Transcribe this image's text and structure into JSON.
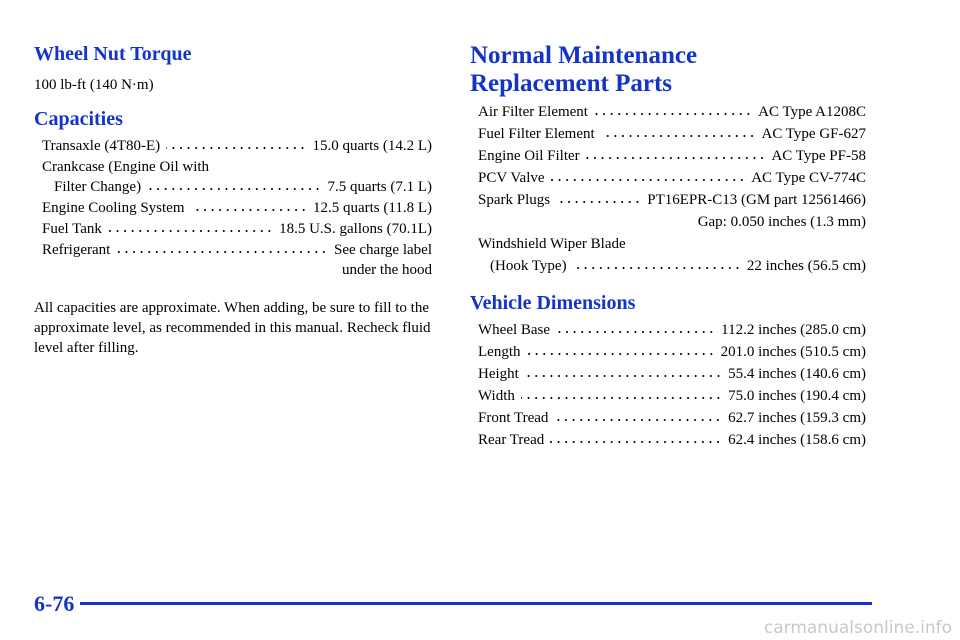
{
  "left": {
    "wheel_heading": "Wheel Nut Torque",
    "torque": "100 lb-ft (140 N·m)",
    "capacities_heading": "Capacities",
    "capacities": [
      {
        "label": "Transaxle (4T80-E)",
        "value": "15.0 quarts (14.2 L)"
      },
      {
        "pre": "Crankcase (Engine Oil with",
        "label": "Filter Change)",
        "value": "7.5 quarts (7.1 L)"
      },
      {
        "label": "Engine Cooling System",
        "value": "12.5 quarts (11.8 L)"
      },
      {
        "label": "Fuel Tank",
        "value": "18.5 U.S. gallons (70.1L)"
      },
      {
        "label": "Refrigerant",
        "value": "See charge label",
        "value2": "under the hood"
      }
    ],
    "note": "All capacities are approximate. When adding, be sure to fill to the approximate level, as recommended in this manual. Recheck fluid level after filling."
  },
  "right": {
    "parts_heading_1": "Normal Maintenance",
    "parts_heading_2": "Replacement Parts",
    "parts": [
      {
        "label": "Air Filter Element",
        "value": "AC Type A1208C"
      },
      {
        "label": "Fuel Filter Element",
        "value": "AC Type GF-627"
      },
      {
        "label": "Engine Oil Filter",
        "value": "AC Type PF-58"
      },
      {
        "label": "PCV Valve",
        "value": "AC Type CV-774C"
      },
      {
        "label": "Spark Plugs",
        "value": "PT16EPR-C13 (GM part 12561466)",
        "value2": "Gap: 0.050 inches (1.3 mm)"
      },
      {
        "pre": "Windshield Wiper Blade",
        "label": "(Hook Type)",
        "value": "22 inches (56.5 cm)"
      }
    ],
    "dimensions_heading": "Vehicle Dimensions",
    "dimensions": [
      {
        "label": "Wheel Base",
        "value": "112.2 inches (285.0 cm)"
      },
      {
        "label": "Length",
        "value": "201.0 inches (510.5 cm)"
      },
      {
        "label": "Height",
        "value": "55.4 inches (140.6 cm)"
      },
      {
        "label": "Width",
        "value": "75.0 inches (190.4 cm)"
      },
      {
        "label": "Front Tread",
        "value": "62.7 inches (159.3 cm)"
      },
      {
        "label": "Rear Tread",
        "value": "62.4 inches (158.6 cm)"
      }
    ]
  },
  "footer": {
    "page_number": "6-76",
    "watermark": "carmanualsonline.info"
  }
}
